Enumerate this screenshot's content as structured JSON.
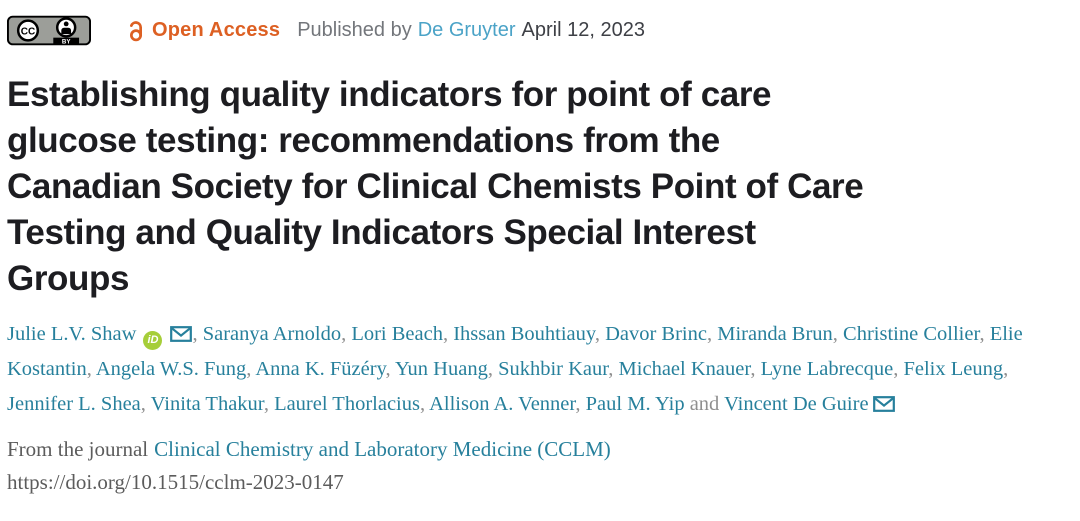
{
  "meta_bar": {
    "cc_badge": {
      "cc_label": "CC",
      "by_label": "BY"
    },
    "open_access_label": "Open Access",
    "published_by_label": "Published by",
    "publisher": "De Gruyter",
    "publish_date": "April 12, 2023"
  },
  "title": {
    "full": "Establishing quality indicators for point of care glucose testing: recommendations from the Canadian Society for Clinical Chemists Point of Care Testing and Quality Indicators Special Interest Groups",
    "lines": [
      "Establishing quality indicators for point of care",
      "glucose testing: recommendations from the",
      "Canadian Society for Clinical Chemists Point of Care",
      "Testing and Quality Indicators Special Interest",
      "Groups"
    ]
  },
  "authors": {
    "separator": ", ",
    "last_separator": " and ",
    "list": [
      {
        "name": "Julie L.V. Shaw",
        "orcid": true,
        "email": true
      },
      {
        "name": "Saranya Arnoldo"
      },
      {
        "name": "Lori Beach"
      },
      {
        "name": "Ihssan Bouhtiauy"
      },
      {
        "name": "Davor Brinc"
      },
      {
        "name": "Miranda Brun"
      },
      {
        "name": "Christine Collier"
      },
      {
        "name": "Elie Kostantin"
      },
      {
        "name": "Angela W.S. Fung"
      },
      {
        "name": "Anna K. Füzéry"
      },
      {
        "name": "Yun Huang"
      },
      {
        "name": "Sukhbir Kaur"
      },
      {
        "name": "Michael Knauer"
      },
      {
        "name": "Lyne Labrecque"
      },
      {
        "name": "Felix Leung"
      },
      {
        "name": "Jennifer L. Shea"
      },
      {
        "name": "Vinita Thakur"
      },
      {
        "name": "Laurel Thorlacius"
      },
      {
        "name": "Allison A. Venner"
      },
      {
        "name": "Paul M. Yip"
      },
      {
        "name": "Vincent De Guire",
        "email": true
      }
    ],
    "orcid_icon_label": "iD"
  },
  "footer": {
    "from_journal_prefix": "From the journal",
    "journal_name": "Clinical Chemistry and Laboratory Medicine (CCLM)",
    "doi_url": "https://doi.org/10.1515/cclm-2023-0147"
  },
  "colors": {
    "open_access_orange": "#DD6023",
    "publisher_link_blue": "#4BA3C7",
    "author_link_teal": "#27809C",
    "orcid_green": "#A6CE39",
    "title_dark": "#1D1D21",
    "muted_gray": "#73767B",
    "separator_gray": "#8F8F8F",
    "serif_text_gray": "#5C5C5C",
    "date_dark": "#3E4046",
    "cc_badge_gray": "#9C9E99"
  }
}
